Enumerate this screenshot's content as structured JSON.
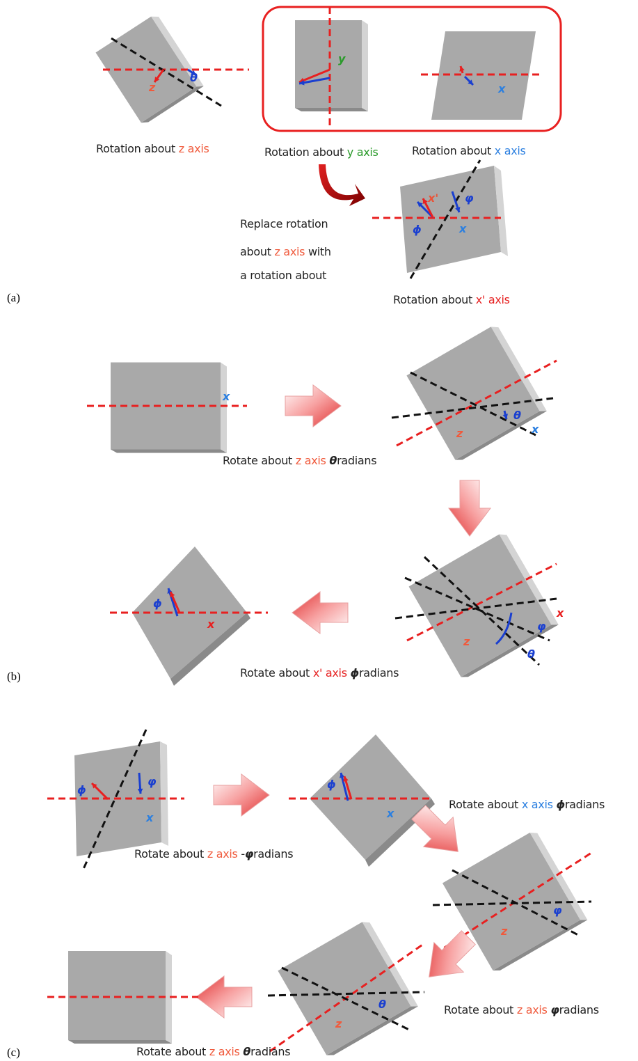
{
  "panel_labels": [
    "(a)",
    "(b)",
    "(c)"
  ],
  "a": {
    "fig1": [
      "z",
      "θ"
    ],
    "fig2": [
      "y"
    ],
    "fig3": [
      "x"
    ],
    "fig4": [
      "x'",
      "φ",
      "ϕ",
      "x"
    ],
    "captions": [
      [
        "Rotation about ",
        "z axis"
      ],
      [
        "Rotation about ",
        "y axis"
      ],
      [
        "Rotation about ",
        "x axis"
      ],
      [
        "Rotation about ",
        "x' axis"
      ]
    ],
    "note": [
      "Replace rotation",
      "about ",
      "z axis",
      " with",
      "a rotation about"
    ]
  },
  "b": {
    "fig1": [
      "x"
    ],
    "fig2": [
      "z",
      "θ",
      "x"
    ],
    "fig3": [
      "z",
      "φ",
      "θ",
      "x"
    ],
    "fig4": [
      "ϕ",
      "x"
    ],
    "captions": [
      [
        "Rotate about ",
        "z axis",
        " ",
        "θ",
        "radians"
      ],
      [
        "Rotate about ",
        "x' axis",
        " ",
        "ϕ",
        "radians"
      ]
    ]
  },
  "c": {
    "fig1": [
      "ϕ",
      "φ",
      "x"
    ],
    "fig2": [
      "ϕ",
      "x"
    ],
    "fig3": [
      "z",
      "φ"
    ],
    "fig4": [
      "z",
      "θ"
    ],
    "captions": [
      [
        "Rotate about ",
        "z axis",
        " -",
        "φ",
        "radians"
      ],
      [
        "Rotate about ",
        "x axis",
        " ",
        "ϕ",
        "radians"
      ],
      [
        "Rotate about ",
        "z axis",
        " ",
        "φ",
        "radians"
      ],
      [
        "Rotate about ",
        "z axis",
        " ",
        "θ",
        "radians"
      ]
    ]
  }
}
